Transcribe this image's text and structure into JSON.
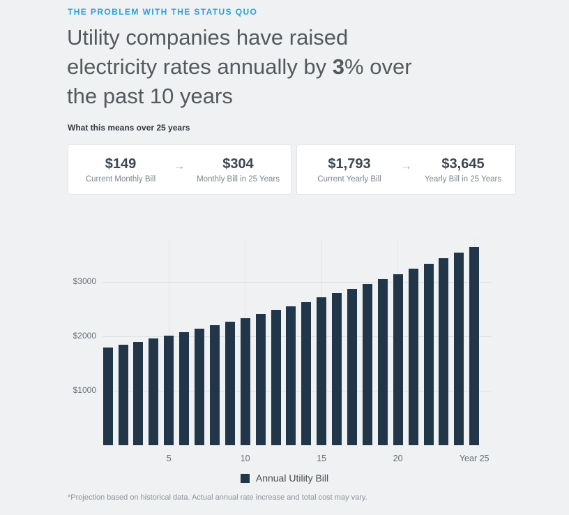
{
  "page": {
    "eyebrow": "THE PROBLEM WITH THE STATUS QUO",
    "title": {
      "line1": "Utility companies have raised",
      "line2_pre": "electricity rates annually by ",
      "line2_bold": "3",
      "line2_post": "% over",
      "line3": "the past 10 years"
    },
    "subheading": "What this means over 25 years",
    "footnote": "*Projection based on historical data. Actual annual rate increase and total cost may vary."
  },
  "stats": {
    "arrow": "→",
    "cards": [
      {
        "from": {
          "value": "$149",
          "label": "Current Monthly Bill"
        },
        "to": {
          "value": "$304",
          "label": "Monthly Bill in 25 Years"
        }
      },
      {
        "from": {
          "value": "$1,793",
          "label": "Current Yearly Bill"
        },
        "to": {
          "value": "$3,645",
          "label": "Yearly Bill in 25 Years"
        }
      }
    ]
  },
  "colors": {
    "accent_blue": "#2e9fd9",
    "bar_navy": "#213649",
    "page_background": "#eff1f2",
    "card_background": "#ffffff"
  },
  "chart_data": {
    "type": "bar",
    "title": "",
    "xlabel": "",
    "ylabel": "",
    "x": [
      1,
      2,
      3,
      4,
      5,
      6,
      7,
      8,
      9,
      10,
      11,
      12,
      13,
      14,
      15,
      16,
      17,
      18,
      19,
      20,
      21,
      22,
      23,
      24,
      25
    ],
    "series": [
      {
        "name": "Annual Utility Bill",
        "values": [
          1793,
          1847,
          1902,
          1959,
          2018,
          2079,
          2141,
          2205,
          2271,
          2339,
          2410,
          2482,
          2556,
          2633,
          2712,
          2793,
          2877,
          2964,
          3052,
          3144,
          3238,
          3336,
          3436,
          3539,
          3645
        ]
      }
    ],
    "xticks": [
      {
        "year": 5,
        "label": "5"
      },
      {
        "year": 10,
        "label": "10"
      },
      {
        "year": 15,
        "label": "15"
      },
      {
        "year": 20,
        "label": "20"
      },
      {
        "year": 25,
        "label": "Year 25"
      }
    ],
    "yticks": [
      {
        "value": 1000,
        "label": "$1000"
      },
      {
        "value": 2000,
        "label": "$2000"
      },
      {
        "value": 3000,
        "label": "$3000"
      }
    ],
    "ylim": [
      0,
      3846
    ],
    "grid": true,
    "legend": {
      "label": "Annual Utility Bill",
      "position": "bottom"
    }
  }
}
